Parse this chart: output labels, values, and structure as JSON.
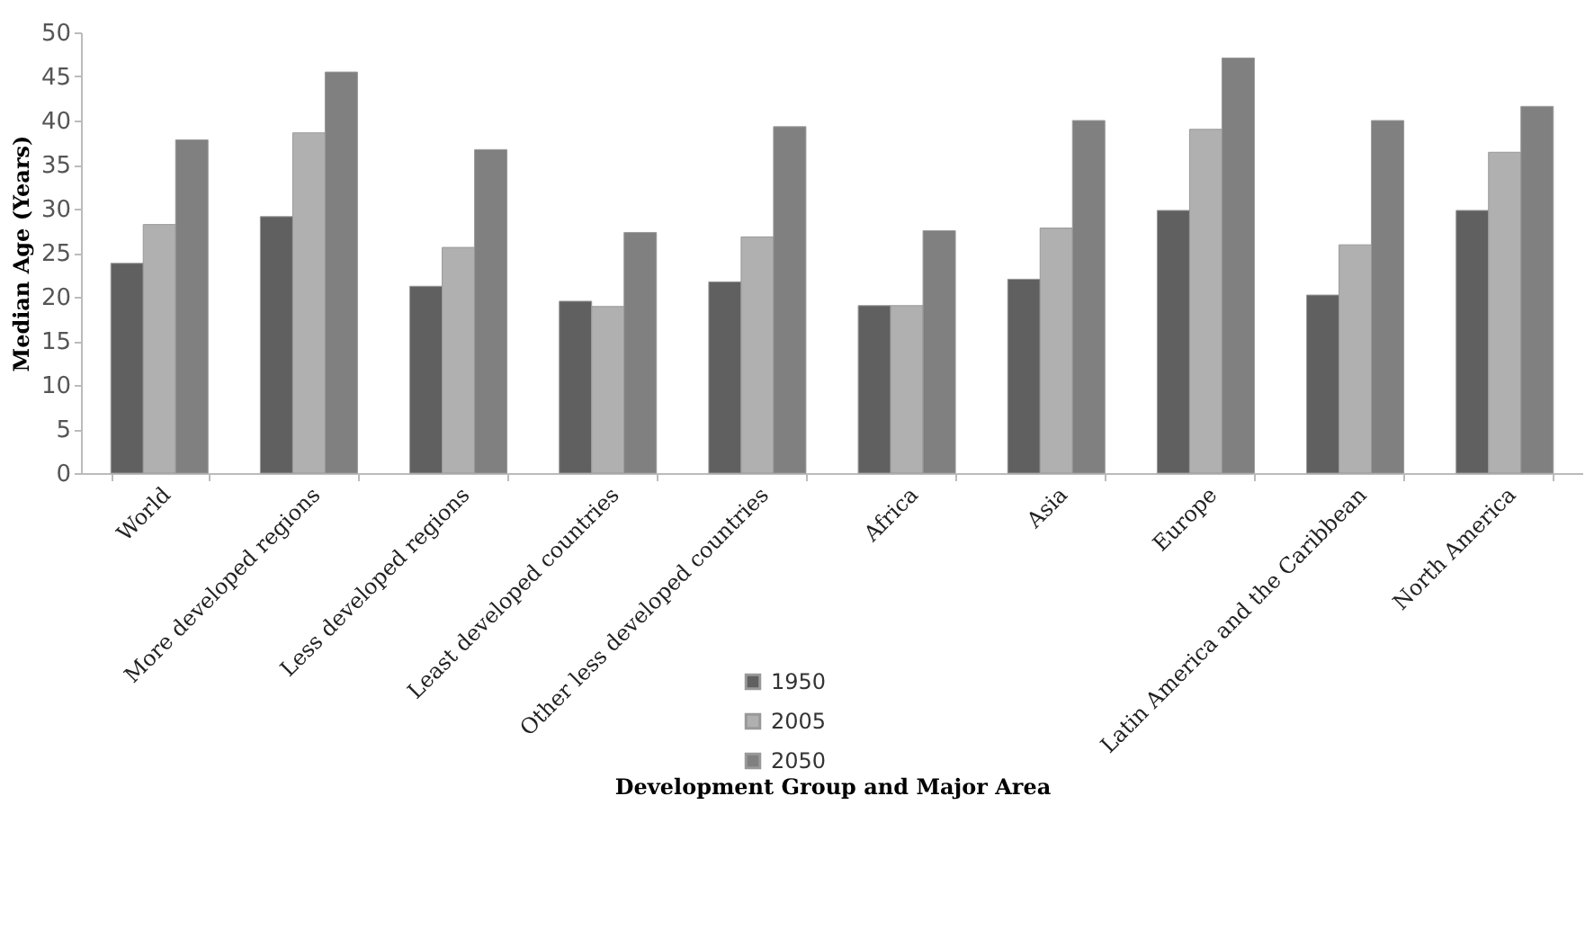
{
  "chart_data": {
    "type": "bar",
    "xlabel": "Development Group and Major Area",
    "ylabel": "Median Age (Years)",
    "categories": [
      "World",
      "More developed regions",
      "Less developed regions",
      "Least developed countries",
      "Other less developed countries",
      "Africa",
      "Asia",
      "Europe",
      "Latin America and the Caribbean",
      "North America"
    ],
    "series": [
      {
        "name": "1950",
        "color": "#606060",
        "values": [
          23.8,
          29.1,
          21.2,
          19.5,
          21.7,
          19.0,
          22.0,
          29.8,
          20.2,
          29.8
        ]
      },
      {
        "name": "2005",
        "color": "#b0b0b0",
        "values": [
          28.2,
          38.6,
          25.6,
          18.9,
          26.8,
          19.0,
          27.8,
          39.0,
          25.9,
          36.4
        ]
      },
      {
        "name": "2050",
        "color": "#808080",
        "values": [
          37.8,
          45.5,
          36.7,
          27.3,
          39.3,
          27.5,
          40.0,
          47.1,
          40.0,
          41.6
        ]
      }
    ],
    "ylim": [
      0,
      50
    ],
    "yticks": [
      0,
      5,
      10,
      15,
      20,
      25,
      30,
      35,
      40,
      45,
      50
    ],
    "grid": false,
    "legend": "bottom"
  }
}
